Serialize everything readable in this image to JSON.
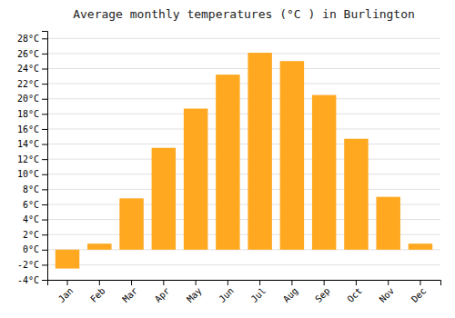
{
  "chart_data": {
    "type": "bar",
    "title": "Average monthly temperatures (°C ) in Burlington",
    "categories": [
      "Jan",
      "Feb",
      "Mar",
      "Apr",
      "May",
      "Jun",
      "Jul",
      "Aug",
      "Sep",
      "Oct",
      "Nov",
      "Dec"
    ],
    "values": [
      -2.5,
      0.8,
      6.8,
      13.5,
      18.7,
      23.2,
      26.1,
      25.0,
      20.5,
      14.7,
      7.0,
      0.8
    ],
    "color": "#FFA820",
    "ylim": [
      -4,
      29
    ],
    "yticks": [
      {
        "value": -4,
        "label": "-4°C"
      },
      {
        "value": -2,
        "label": "-2°C"
      },
      {
        "value": 0,
        "label": "0°C"
      },
      {
        "value": 2,
        "label": "2°C"
      },
      {
        "value": 4,
        "label": "4°C"
      },
      {
        "value": 6,
        "label": "6°C"
      },
      {
        "value": 8,
        "label": "8°C"
      },
      {
        "value": 10,
        "label": "10°C"
      },
      {
        "value": 12,
        "label": "12°C"
      },
      {
        "value": 14,
        "label": "14°C"
      },
      {
        "value": 16,
        "label": "16°C"
      },
      {
        "value": 18,
        "label": "18°C"
      },
      {
        "value": 20,
        "label": "20°C"
      },
      {
        "value": 22,
        "label": "22°C"
      },
      {
        "value": 24,
        "label": "24°C"
      },
      {
        "value": 26,
        "label": "26°C"
      },
      {
        "value": 28,
        "label": "28°C"
      }
    ],
    "grid": true
  }
}
